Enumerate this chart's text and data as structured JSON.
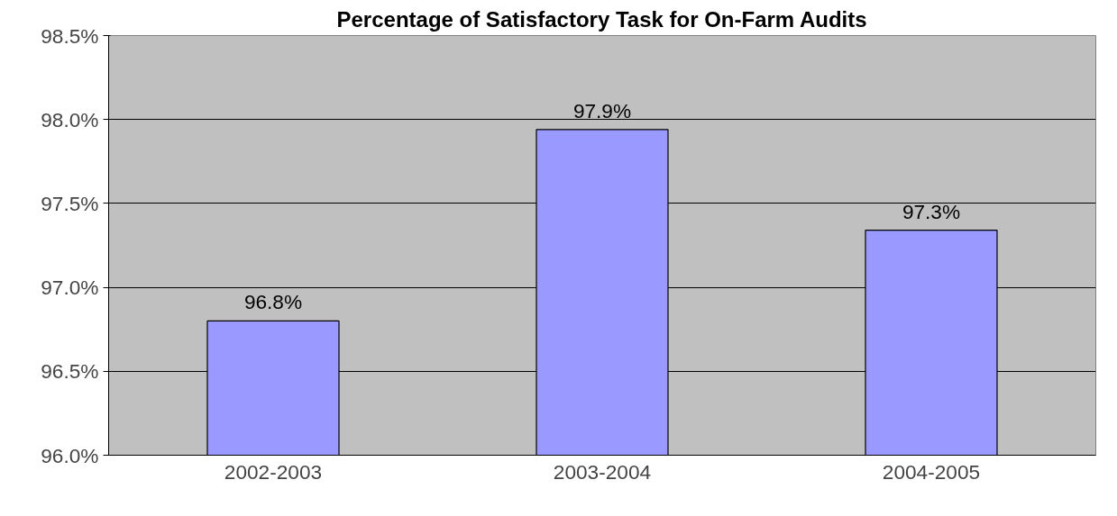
{
  "chart_data": {
    "type": "bar",
    "title": "Percentage of Satisfactory Task for On-Farm Audits",
    "categories": [
      "2002-2003",
      "2003-2004",
      "2004-2005"
    ],
    "values": [
      96.8,
      97.94,
      97.34
    ],
    "value_labels": [
      "96.8%",
      "97.9%",
      "97.3%"
    ],
    "color": "#9999ff",
    "ylim": [
      96.0,
      98.5
    ],
    "yticks": [
      {
        "value": 96.0,
        "label": "96.0%"
      },
      {
        "value": 96.5,
        "label": "96.5%"
      },
      {
        "value": 97.0,
        "label": "97.0%"
      },
      {
        "value": 97.5,
        "label": "97.5%"
      },
      {
        "value": 98.0,
        "label": "98.0%"
      },
      {
        "value": 98.5,
        "label": "98.5%"
      }
    ],
    "grid": "y"
  }
}
